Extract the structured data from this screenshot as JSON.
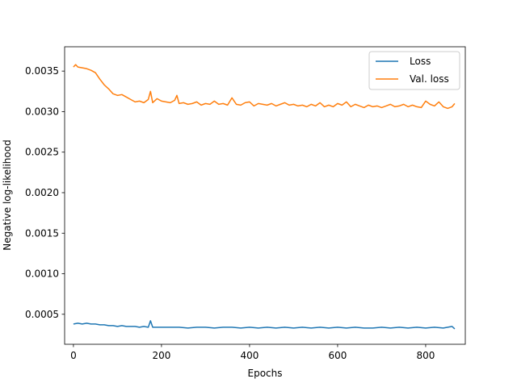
{
  "chart_data": {
    "type": "line",
    "title": "",
    "xlabel": "Epochs",
    "ylabel": "Negative log-likelihood",
    "xlim": [
      -20,
      890
    ],
    "ylim": [
      0.00013,
      0.0038
    ],
    "xticks": [
      0,
      200,
      400,
      600,
      800
    ],
    "xtick_labels": [
      "0",
      "200",
      "400",
      "600",
      "800"
    ],
    "yticks": [
      0.0005,
      0.001,
      0.0015,
      0.002,
      0.0025,
      0.003,
      0.0035
    ],
    "ytick_labels": [
      "0.0005",
      "0.0010",
      "0.0015",
      "0.0020",
      "0.0025",
      "0.0030",
      "0.0035"
    ],
    "grid": false,
    "legend_position": "top-right",
    "series": [
      {
        "name": "Loss",
        "color": "#1f77b4",
        "x": [
          0,
          10,
          20,
          30,
          40,
          50,
          60,
          70,
          80,
          90,
          100,
          110,
          120,
          130,
          140,
          150,
          160,
          170,
          175,
          180,
          190,
          200,
          220,
          240,
          260,
          280,
          300,
          320,
          340,
          360,
          380,
          400,
          420,
          440,
          460,
          480,
          500,
          520,
          540,
          560,
          580,
          600,
          620,
          640,
          660,
          680,
          700,
          720,
          740,
          760,
          780,
          800,
          820,
          840,
          860,
          866
        ],
        "y": [
          0.00038,
          0.00039,
          0.00038,
          0.00039,
          0.00038,
          0.00038,
          0.00037,
          0.00037,
          0.00036,
          0.00036,
          0.00035,
          0.00036,
          0.00035,
          0.00035,
          0.00035,
          0.00034,
          0.00035,
          0.00034,
          0.00042,
          0.00034,
          0.00034,
          0.00034,
          0.00034,
          0.00034,
          0.00033,
          0.00034,
          0.00034,
          0.00033,
          0.00034,
          0.00034,
          0.00033,
          0.00034,
          0.00033,
          0.00034,
          0.00033,
          0.00034,
          0.00033,
          0.00034,
          0.00033,
          0.00034,
          0.00033,
          0.00034,
          0.00033,
          0.00034,
          0.00033,
          0.00033,
          0.00034,
          0.00033,
          0.00034,
          0.00033,
          0.00034,
          0.00033,
          0.00034,
          0.00033,
          0.00035,
          0.00032
        ]
      },
      {
        "name": "Val. loss",
        "color": "#ff7f0e",
        "x": [
          0,
          5,
          10,
          20,
          30,
          40,
          50,
          60,
          70,
          80,
          90,
          100,
          110,
          120,
          130,
          140,
          150,
          160,
          170,
          175,
          180,
          190,
          200,
          210,
          220,
          230,
          235,
          240,
          250,
          260,
          270,
          280,
          290,
          300,
          310,
          320,
          330,
          340,
          350,
          360,
          370,
          380,
          390,
          400,
          410,
          420,
          430,
          440,
          450,
          460,
          470,
          480,
          490,
          500,
          510,
          520,
          530,
          540,
          550,
          560,
          570,
          580,
          590,
          600,
          610,
          620,
          630,
          640,
          650,
          660,
          670,
          680,
          690,
          700,
          710,
          720,
          730,
          740,
          750,
          760,
          770,
          780,
          790,
          800,
          810,
          820,
          830,
          840,
          850,
          860,
          866
        ],
        "y": [
          0.00355,
          0.00358,
          0.00355,
          0.00354,
          0.00353,
          0.00351,
          0.00348,
          0.0034,
          0.00333,
          0.00328,
          0.00322,
          0.0032,
          0.00321,
          0.00318,
          0.00315,
          0.00312,
          0.00313,
          0.00311,
          0.00315,
          0.00325,
          0.00311,
          0.00316,
          0.00313,
          0.00312,
          0.00311,
          0.00314,
          0.0032,
          0.0031,
          0.00311,
          0.00309,
          0.0031,
          0.00312,
          0.00308,
          0.0031,
          0.00309,
          0.00313,
          0.00309,
          0.0031,
          0.00308,
          0.00317,
          0.00309,
          0.00308,
          0.00311,
          0.00312,
          0.00307,
          0.0031,
          0.00309,
          0.00308,
          0.0031,
          0.00307,
          0.00309,
          0.00311,
          0.00308,
          0.00309,
          0.00307,
          0.00308,
          0.00306,
          0.00309,
          0.00307,
          0.00311,
          0.00306,
          0.00308,
          0.00306,
          0.0031,
          0.00308,
          0.00312,
          0.00306,
          0.00309,
          0.00307,
          0.00305,
          0.00308,
          0.00306,
          0.00307,
          0.00305,
          0.00307,
          0.00309,
          0.00306,
          0.00307,
          0.00309,
          0.00306,
          0.00308,
          0.00306,
          0.00305,
          0.00313,
          0.00309,
          0.00307,
          0.00312,
          0.00306,
          0.00304,
          0.00306,
          0.0031
        ]
      }
    ]
  }
}
